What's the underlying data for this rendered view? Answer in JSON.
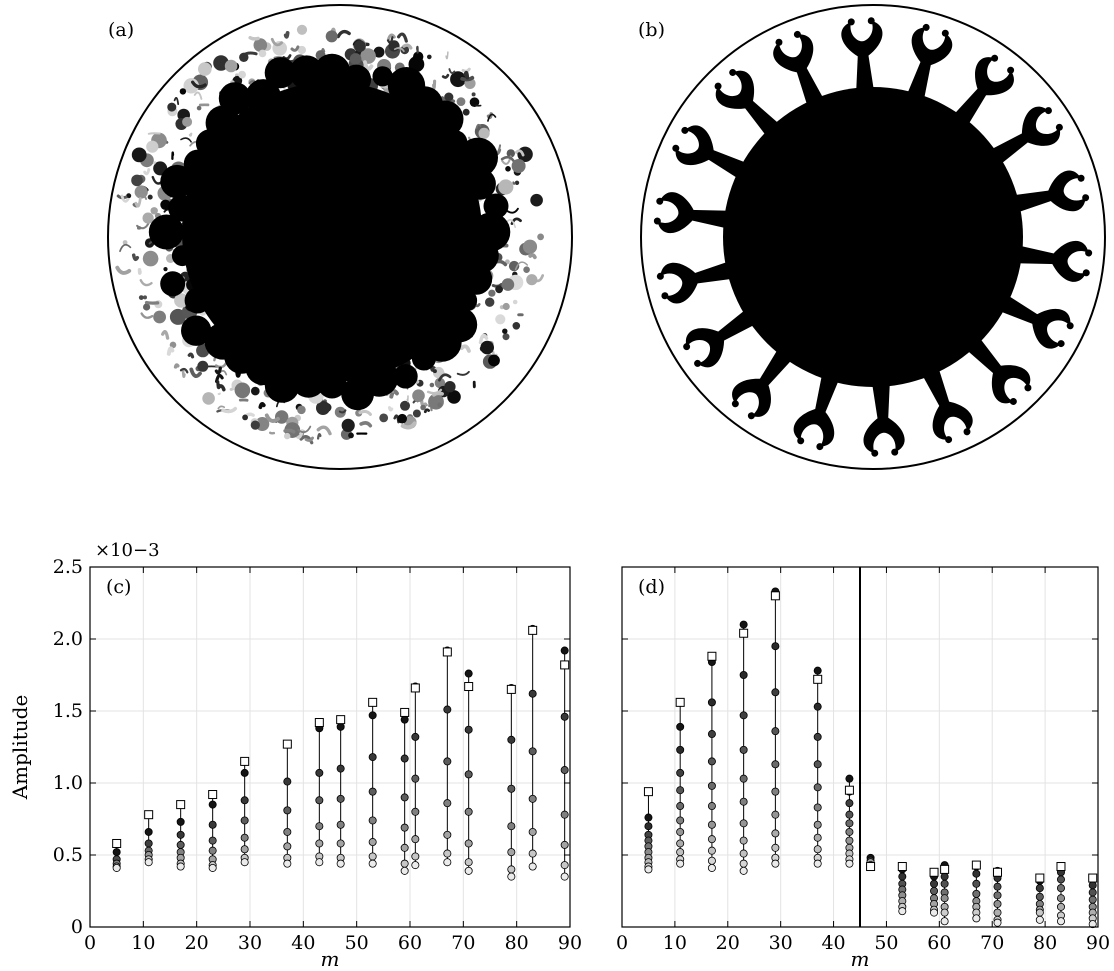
{
  "panels": {
    "a": {
      "label": "(a)"
    },
    "b": {
      "label": "(b)"
    }
  },
  "chart_data": [
    {
      "type": "scatter",
      "panel_label": "(c)",
      "xlabel": "m",
      "ylabel": "Amplitude",
      "y_multiplier": "×10−3",
      "xlim": [
        0,
        90
      ],
      "ylim": [
        0,
        2.5
      ],
      "xticks": [
        0,
        10,
        20,
        30,
        40,
        50,
        60,
        70,
        80,
        90
      ],
      "yticks": [
        "0",
        "0.5",
        "1.0",
        "1.5",
        "2.0",
        "2.5"
      ],
      "ytick_values": [
        0,
        0.5,
        1.0,
        1.5,
        2.0,
        2.5
      ],
      "grid": true,
      "series": [
        {
          "marker": "square",
          "points": [
            [
              5,
              0.58
            ],
            [
              11,
              0.78
            ],
            [
              17,
              0.85
            ],
            [
              23,
              0.92
            ],
            [
              29,
              1.15
            ],
            [
              37,
              1.27
            ],
            [
              43,
              1.42
            ],
            [
              47,
              1.44
            ],
            [
              53,
              1.56
            ],
            [
              59,
              1.49
            ],
            [
              61,
              1.66
            ],
            [
              67,
              1.91
            ],
            [
              71,
              1.67
            ],
            [
              79,
              1.65
            ],
            [
              83,
              2.06
            ],
            [
              89,
              1.82
            ]
          ]
        },
        {
          "marker": "circle",
          "columns": [
            {
              "m": 5,
              "values": [
                0.52,
                0.47,
                0.44,
                0.42,
                0.41
              ]
            },
            {
              "m": 11,
              "values": [
                0.66,
                0.58,
                0.53,
                0.5,
                0.47,
                0.45
              ]
            },
            {
              "m": 17,
              "values": [
                0.73,
                0.64,
                0.57,
                0.52,
                0.48,
                0.44,
                0.42
              ]
            },
            {
              "m": 23,
              "values": [
                0.85,
                0.71,
                0.6,
                0.53,
                0.47,
                0.43,
                0.41
              ]
            },
            {
              "m": 29,
              "values": [
                1.07,
                0.88,
                0.74,
                0.62,
                0.54,
                0.48,
                0.45
              ]
            },
            {
              "m": 37,
              "values": [
                1.27,
                1.01,
                0.81,
                0.66,
                0.56,
                0.48,
                0.44
              ]
            },
            {
              "m": 43,
              "values": [
                1.38,
                1.07,
                0.88,
                0.7,
                0.58,
                0.49,
                0.45
              ]
            },
            {
              "m": 47,
              "values": [
                1.39,
                1.1,
                0.89,
                0.71,
                0.58,
                0.48,
                0.44
              ]
            },
            {
              "m": 53,
              "values": [
                1.47,
                1.18,
                0.94,
                0.74,
                0.59,
                0.49,
                0.44
              ]
            },
            {
              "m": 59,
              "values": [
                1.44,
                1.17,
                0.9,
                0.69,
                0.55,
                0.44,
                0.39
              ]
            },
            {
              "m": 61,
              "values": [
                1.67,
                1.32,
                1.03,
                0.8,
                0.61,
                0.49,
                0.43
              ]
            },
            {
              "m": 67,
              "values": [
                1.92,
                1.51,
                1.15,
                0.86,
                0.64,
                0.51,
                0.45
              ]
            },
            {
              "m": 71,
              "values": [
                1.76,
                1.37,
                1.06,
                0.8,
                0.58,
                0.45,
                0.39
              ]
            },
            {
              "m": 79,
              "values": [
                1.66,
                1.3,
                0.96,
                0.7,
                0.52,
                0.4,
                0.35
              ]
            },
            {
              "m": 83,
              "values": [
                2.07,
                1.62,
                1.22,
                0.89,
                0.66,
                0.51,
                0.42
              ]
            },
            {
              "m": 89,
              "values": [
                1.92,
                1.46,
                1.09,
                0.78,
                0.57,
                0.43,
                0.35
              ]
            }
          ]
        }
      ]
    },
    {
      "type": "scatter",
      "panel_label": "(d)",
      "xlabel": "m",
      "xlim": [
        0,
        90
      ],
      "ylim": [
        0,
        2.5
      ],
      "xticks": [
        0,
        10,
        20,
        30,
        40,
        50,
        60,
        70,
        80,
        90
      ],
      "grid": true,
      "vertical_line_x": 45,
      "series": [
        {
          "marker": "square",
          "points": [
            [
              5,
              0.94
            ],
            [
              11,
              1.56
            ],
            [
              17,
              1.88
            ],
            [
              23,
              2.04
            ],
            [
              29,
              2.3
            ],
            [
              37,
              1.72
            ],
            [
              43,
              0.95
            ],
            [
              47,
              0.42
            ],
            [
              53,
              0.42
            ],
            [
              59,
              0.38
            ],
            [
              61,
              0.4
            ],
            [
              67,
              0.43
            ],
            [
              71,
              0.38
            ],
            [
              79,
              0.34
            ],
            [
              83,
              0.42
            ],
            [
              89,
              0.34
            ]
          ]
        },
        {
          "marker": "circle",
          "columns": [
            {
              "m": 5,
              "values": [
                0.76,
                0.7,
                0.64,
                0.6,
                0.56,
                0.52,
                0.48,
                0.45,
                0.42,
                0.4
              ]
            },
            {
              "m": 11,
              "values": [
                1.39,
                1.23,
                1.07,
                0.95,
                0.84,
                0.74,
                0.66,
                0.58,
                0.52,
                0.47,
                0.44
              ]
            },
            {
              "m": 17,
              "values": [
                1.84,
                1.56,
                1.34,
                1.15,
                0.98,
                0.84,
                0.71,
                0.61,
                0.53,
                0.46,
                0.41
              ]
            },
            {
              "m": 23,
              "values": [
                2.1,
                1.75,
                1.47,
                1.23,
                1.03,
                0.87,
                0.72,
                0.6,
                0.51,
                0.44,
                0.39
              ]
            },
            {
              "m": 29,
              "values": [
                2.33,
                1.95,
                1.63,
                1.36,
                1.13,
                0.94,
                0.78,
                0.65,
                0.55,
                0.48,
                0.44
              ]
            },
            {
              "m": 37,
              "values": [
                1.78,
                1.53,
                1.32,
                1.13,
                0.97,
                0.83,
                0.71,
                0.62,
                0.54,
                0.48,
                0.44
              ]
            },
            {
              "m": 43,
              "values": [
                1.03,
                0.94,
                0.86,
                0.78,
                0.72,
                0.66,
                0.6,
                0.55,
                0.51,
                0.47,
                0.44
              ]
            },
            {
              "m": 47,
              "values": [
                0.48,
                0.46,
                0.45,
                0.43
              ]
            },
            {
              "m": 53,
              "values": [
                0.4,
                0.35,
                0.3,
                0.26,
                0.22,
                0.18,
                0.14,
                0.11
              ]
            },
            {
              "m": 59,
              "values": [
                0.35,
                0.3,
                0.25,
                0.2,
                0.16,
                0.12,
                0.1
              ]
            },
            {
              "m": 61,
              "values": [
                0.43,
                0.35,
                0.3,
                0.24,
                0.2,
                0.14,
                0.1,
                0.04
              ]
            },
            {
              "m": 67,
              "values": [
                0.42,
                0.37,
                0.3,
                0.23,
                0.18,
                0.14,
                0.1,
                0.06
              ]
            },
            {
              "m": 71,
              "values": [
                0.39,
                0.34,
                0.28,
                0.22,
                0.16,
                0.1,
                0.05,
                0.03
              ]
            },
            {
              "m": 79,
              "values": [
                0.32,
                0.27,
                0.21,
                0.16,
                0.12,
                0.1,
                0.05
              ]
            },
            {
              "m": 83,
              "values": [
                0.41,
                0.38,
                0.33,
                0.27,
                0.2,
                0.14,
                0.08,
                0.04
              ]
            },
            {
              "m": 89,
              "values": [
                0.33,
                0.29,
                0.24,
                0.19,
                0.14,
                0.1,
                0.06,
                0.02
              ]
            }
          ]
        }
      ]
    }
  ]
}
